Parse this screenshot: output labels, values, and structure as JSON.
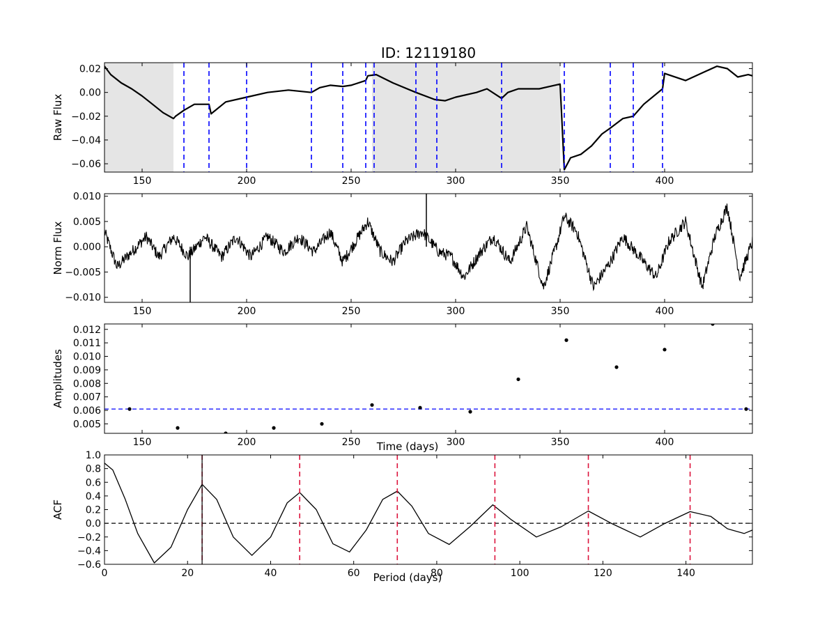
{
  "figure": {
    "title": "ID: 12119180"
  },
  "chart_data": [
    {
      "type": "line",
      "panel": "raw-flux",
      "ylabel": "Raw Flux",
      "xlabel": "",
      "xlim": [
        132,
        442
      ],
      "ylim": [
        -0.067,
        0.025
      ],
      "xticks": [
        150,
        200,
        250,
        300,
        350,
        400
      ],
      "yticks": [
        0.02,
        0.0,
        -0.02,
        -0.04,
        -0.06
      ],
      "ytick_labels": [
        "0.02",
        "0.00",
        "−0.02",
        "−0.04",
        "−0.06"
      ],
      "shaded_regions": [
        [
          132,
          165
        ],
        [
          260,
          350
        ]
      ],
      "vlines": [
        170,
        182,
        200,
        231,
        246,
        257,
        261,
        281,
        291,
        322,
        352,
        374,
        385,
        399
      ],
      "vline_color": "#0000ff",
      "series": [
        {
          "x": [
            132,
            135,
            140,
            145,
            150,
            155,
            160,
            165,
            166,
            170,
            175,
            182,
            183,
            190,
            200,
            210,
            220,
            231,
            235,
            240,
            246,
            250,
            257,
            258,
            262,
            270,
            281,
            290,
            295,
            300,
            310,
            315,
            322,
            325,
            330,
            340,
            350,
            352,
            355,
            360,
            365,
            370,
            374,
            380,
            385,
            390,
            399,
            400,
            410,
            420,
            425,
            430,
            435,
            440,
            442
          ],
          "y": [
            0.022,
            0.015,
            0.008,
            0.003,
            -0.003,
            -0.01,
            -0.017,
            -0.022,
            -0.02,
            -0.015,
            -0.01,
            -0.01,
            -0.018,
            -0.008,
            -0.004,
            0.0,
            0.002,
            0.0,
            0.004,
            0.006,
            0.005,
            0.006,
            0.01,
            0.014,
            0.015,
            0.008,
            0.0,
            -0.006,
            -0.007,
            -0.004,
            0.0,
            0.003,
            -0.005,
            0.0,
            0.003,
            0.003,
            0.007,
            -0.065,
            -0.055,
            -0.052,
            -0.045,
            -0.035,
            -0.03,
            -0.022,
            -0.02,
            -0.01,
            0.003,
            0.016,
            0.01,
            0.018,
            0.022,
            0.02,
            0.013,
            0.015,
            0.014
          ],
          "color": "#000000"
        }
      ]
    },
    {
      "type": "line",
      "panel": "norm-flux",
      "ylabel": "Norm Flux",
      "xlabel": "",
      "xlim": [
        132,
        442
      ],
      "ylim": [
        -0.011,
        0.0105
      ],
      "xticks": [
        150,
        200,
        250,
        300,
        350,
        400
      ],
      "yticks": [
        0.01,
        0.005,
        0.0,
        -0.005,
        -0.01
      ],
      "ytick_labels": [
        "0.010",
        "0.005",
        "0.000",
        "−0.005",
        "−0.010"
      ],
      "spikes": [
        [
          173,
          -0.011
        ],
        [
          286,
          0.0105
        ]
      ],
      "series": [
        {
          "x": [
            132,
            138,
            145,
            152,
            158,
            165,
            172,
            180,
            188,
            195,
            202,
            210,
            218,
            225,
            232,
            240,
            246,
            252,
            258,
            264,
            270,
            276,
            284,
            292,
            298,
            304,
            312,
            318,
            326,
            334,
            342,
            348,
            352,
            358,
            366,
            374,
            380,
            388,
            396,
            402,
            410,
            418,
            424,
            430,
            436,
            442
          ],
          "y": [
            0.003,
            -0.004,
            -0.001,
            0.002,
            -0.002,
            0.002,
            -0.002,
            0.002,
            -0.002,
            0.002,
            -0.002,
            0.002,
            -0.001,
            0.002,
            -0.001,
            0.003,
            -0.003,
            0.001,
            0.005,
            -0.001,
            -0.003,
            0.001,
            0.003,
            -0.001,
            -0.002,
            -0.006,
            -0.001,
            0.002,
            -0.003,
            0.004,
            -0.008,
            0.0,
            0.006,
            0.003,
            -0.008,
            -0.003,
            0.002,
            -0.002,
            -0.006,
            0.001,
            0.005,
            -0.008,
            0.002,
            0.008,
            -0.006,
            0.001
          ],
          "noise": 0.0012,
          "color": "#000000"
        }
      ]
    },
    {
      "type": "scatter",
      "panel": "amplitudes",
      "ylabel": "Amplitudes",
      "xlabel": "Time (days)",
      "xlim": [
        132,
        442
      ],
      "ylim": [
        0.0043,
        0.0124
      ],
      "xticks": [
        150,
        200,
        250,
        300,
        350,
        400
      ],
      "yticks": [
        0.012,
        0.011,
        0.01,
        0.009,
        0.008,
        0.007,
        0.006,
        0.005
      ],
      "ytick_labels": [
        "0.012",
        "0.011",
        "0.010",
        "0.009",
        "0.008",
        "0.007",
        "0.006",
        "0.005"
      ],
      "hline": 0.0061,
      "hline_color": "#0000ff",
      "series": [
        {
          "x": [
            144,
            167,
            190,
            213,
            236,
            260,
            283,
            307,
            330,
            353,
            377,
            400,
            423,
            439
          ],
          "y": [
            0.0061,
            0.0047,
            0.0043,
            0.0047,
            0.005,
            0.0064,
            0.0062,
            0.0059,
            0.0083,
            0.0112,
            0.0092,
            0.0105,
            0.0124,
            0.0061
          ],
          "color": "#000000"
        }
      ]
    },
    {
      "type": "line",
      "panel": "acf",
      "ylabel": "ACF",
      "xlabel": "Period (days)",
      "xlim": [
        0,
        156
      ],
      "ylim": [
        -0.6,
        1.0
      ],
      "xticks": [
        0,
        20,
        40,
        60,
        80,
        100,
        120,
        140
      ],
      "yticks": [
        1.0,
        0.8,
        0.6,
        0.4,
        0.2,
        0.0,
        -0.2,
        -0.4,
        -0.6
      ],
      "ytick_labels": [
        "1.0",
        "0.8",
        "0.6",
        "0.4",
        "0.2",
        "0.0",
        "−0.2",
        "−0.4",
        "−0.6"
      ],
      "hline": 0.0,
      "hline_color": "#000000",
      "period_line": 23.5,
      "vlines": [
        23.5,
        47,
        70.5,
        94,
        116.5,
        141
      ],
      "vline_color": "#dc143c",
      "series": [
        {
          "x": [
            0,
            2,
            5,
            8,
            12,
            16,
            20,
            23.5,
            27,
            31,
            35.5,
            40,
            44,
            47,
            51,
            55,
            59,
            63,
            67,
            70.5,
            74,
            78,
            83,
            88,
            93.5,
            98,
            104,
            110,
            116.5,
            122,
            129,
            135,
            141,
            146,
            150,
            154,
            156
          ],
          "y": [
            0.88,
            0.78,
            0.35,
            -0.15,
            -0.58,
            -0.35,
            0.2,
            0.57,
            0.35,
            -0.2,
            -0.47,
            -0.2,
            0.3,
            0.45,
            0.2,
            -0.3,
            -0.42,
            -0.1,
            0.35,
            0.47,
            0.25,
            -0.15,
            -0.31,
            -0.05,
            0.27,
            0.05,
            -0.2,
            -0.05,
            0.18,
            0.0,
            -0.2,
            0.0,
            0.17,
            0.1,
            -0.08,
            -0.15,
            -0.1
          ],
          "color": "#000000"
        }
      ]
    }
  ]
}
